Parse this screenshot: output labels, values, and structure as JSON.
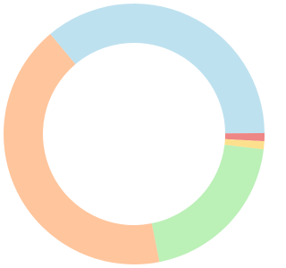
{
  "chart_data": {
    "type": "pie",
    "values": [
      36,
      1,
      1,
      20,
      42
    ],
    "colors": [
      "#bee1ef",
      "#ee8686",
      "#fde08e",
      "#bbf0b7",
      "#ffc59c"
    ],
    "startangle": -40,
    "donut": true
  }
}
